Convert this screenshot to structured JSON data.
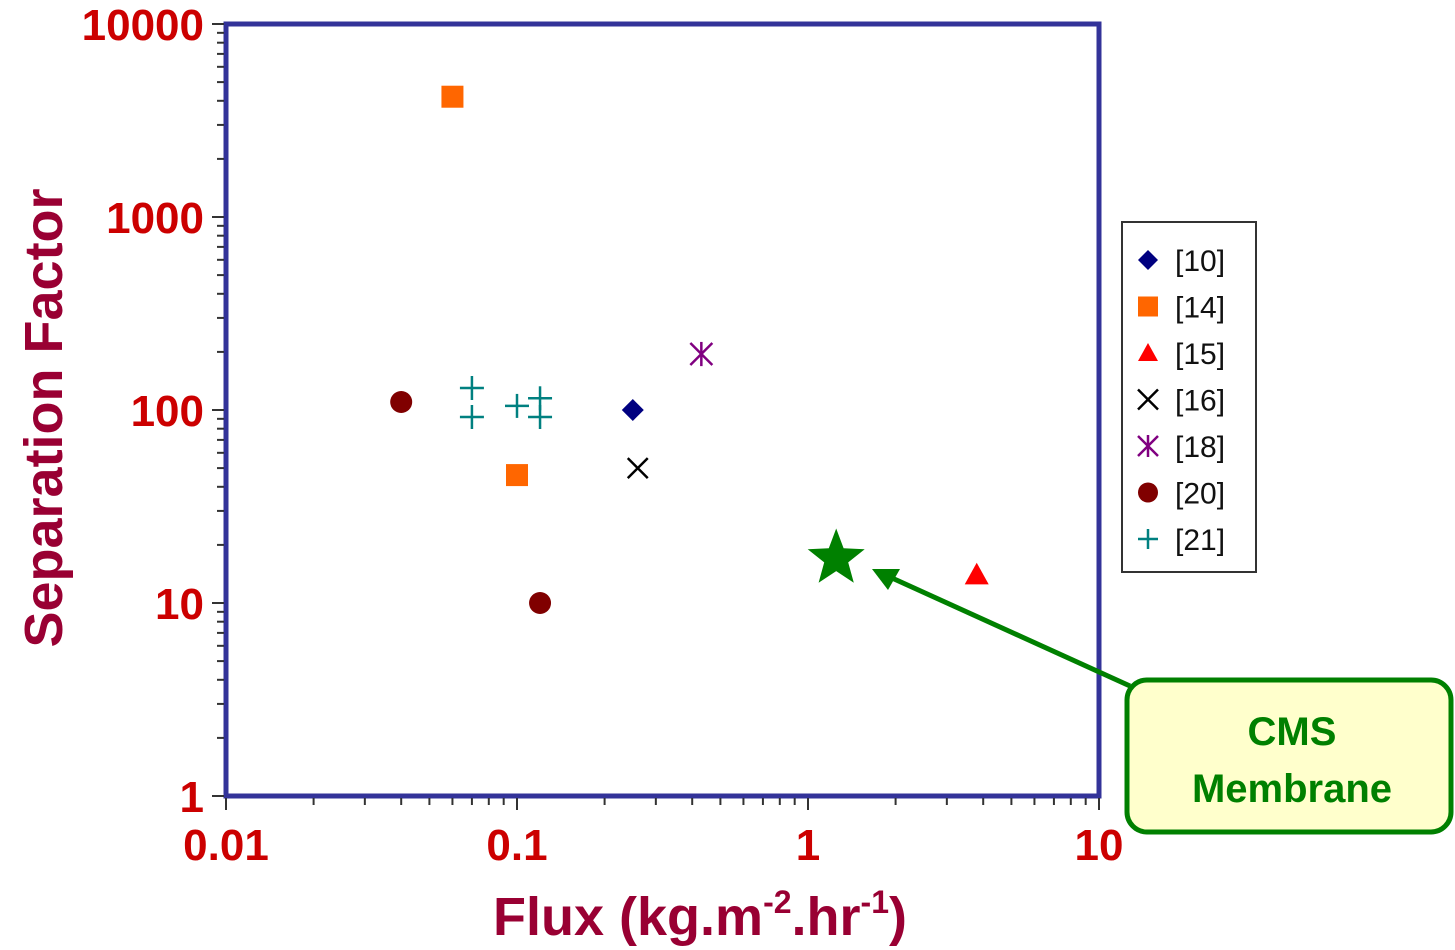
{
  "chart_data": {
    "type": "scatter",
    "x_scale": "log",
    "y_scale": "log",
    "xlim": [
      0.01,
      10
    ],
    "ylim": [
      1,
      10000
    ],
    "x_ticks": [
      "0.01",
      "0.1",
      "1",
      "10"
    ],
    "y_ticks": [
      "1",
      "10",
      "100",
      "1000",
      "10000"
    ],
    "xlabel": "Flux (kg.m-2.hr-1)",
    "xlabel_main": "Flux (kg.m",
    "xlabel_exp1": "-2",
    "xlabel_mid": ".hr",
    "xlabel_exp2": "-1",
    "xlabel_end": ")",
    "ylabel": "Separation Factor",
    "grid": false,
    "legend_position": "right",
    "series": [
      {
        "name": "[10]",
        "marker": "diamond",
        "color": "#000080",
        "points": [
          {
            "x": 0.25,
            "y": 100
          }
        ]
      },
      {
        "name": "[14]",
        "marker": "square",
        "color": "#ff6600",
        "points": [
          {
            "x": 0.06,
            "y": 4200
          },
          {
            "x": 0.1,
            "y": 46
          }
        ]
      },
      {
        "name": "[15]",
        "marker": "triangle",
        "color": "#ff0000",
        "points": [
          {
            "x": 3.8,
            "y": 14
          }
        ]
      },
      {
        "name": "[16]",
        "marker": "x",
        "color": "#000000",
        "points": [
          {
            "x": 0.26,
            "y": 50
          }
        ]
      },
      {
        "name": "[18]",
        "marker": "asterisk",
        "color": "#800080",
        "points": [
          {
            "x": 0.43,
            "y": 195
          }
        ]
      },
      {
        "name": "[20]",
        "marker": "circle",
        "color": "#800000",
        "points": [
          {
            "x": 0.04,
            "y": 110
          },
          {
            "x": 0.12,
            "y": 10
          }
        ]
      },
      {
        "name": "[21]",
        "marker": "plus",
        "color": "#008080",
        "points": [
          {
            "x": 0.07,
            "y": 130
          },
          {
            "x": 0.07,
            "y": 92
          },
          {
            "x": 0.1,
            "y": 105
          },
          {
            "x": 0.12,
            "y": 115
          },
          {
            "x": 0.12,
            "y": 92
          }
        ]
      }
    ],
    "highlight": {
      "label": "CMS Membrane",
      "marker": "star",
      "color": "#008000",
      "x": 1.25,
      "y": 17
    }
  },
  "annotation": {
    "line1": "CMS",
    "line2": "Membrane",
    "color": "#008000",
    "fill": "#ffffcc"
  },
  "colors": {
    "frame": "#333399",
    "tick_label": "#cc0000",
    "axis_title": "#990033"
  }
}
